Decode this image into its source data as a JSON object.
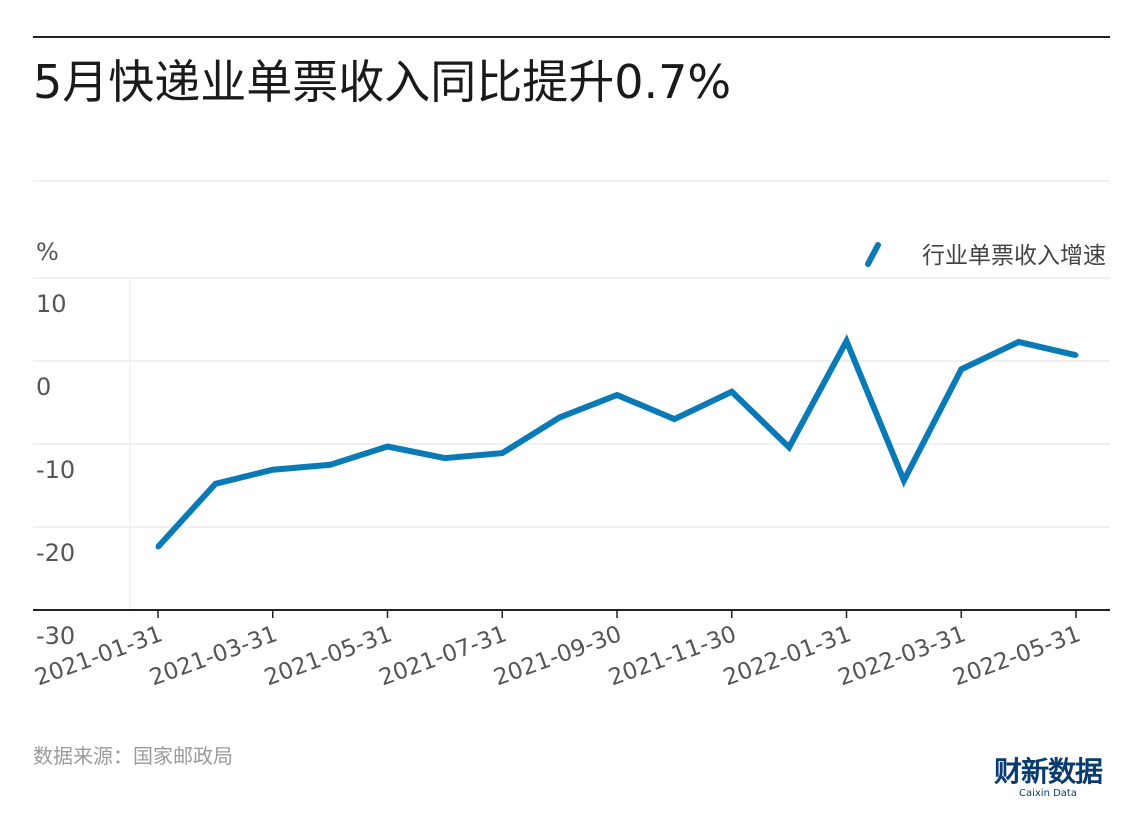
{
  "title": "5月快递业单票收入同比提升0.7%",
  "source": "数据来源：国家邮政局",
  "brand": {
    "name": "财新数据",
    "sub": "Caixin Data"
  },
  "colors": {
    "line": "#0a7ab7",
    "axis": "#222222",
    "grid": "#e2e2e2",
    "tick_text": "#555555"
  },
  "chart_data": {
    "type": "line",
    "title": "5月快递业单票收入同比提升0.7%",
    "ylabel": "%",
    "xlabel": "",
    "ylim": [
      -30,
      10
    ],
    "yticks": [
      10,
      0,
      -10,
      -20,
      -30
    ],
    "grid": true,
    "legend_position": "top-right",
    "x": [
      "2021-01-31",
      "2021-02-28",
      "2021-03-31",
      "2021-04-30",
      "2021-05-31",
      "2021-06-30",
      "2021-07-31",
      "2021-08-31",
      "2021-09-30",
      "2021-10-31",
      "2021-11-30",
      "2021-12-31",
      "2022-01-31",
      "2022-02-28",
      "2022-03-31",
      "2022-04-30",
      "2022-05-31"
    ],
    "xtick_labels": [
      "2021-01-31",
      "2021-03-31",
      "2021-05-31",
      "2021-07-31",
      "2021-09-30",
      "2021-11-30",
      "2022-01-31",
      "2022-03-31",
      "2022-05-31"
    ],
    "series": [
      {
        "name": "行业单票收入增速",
        "values": [
          -22.4,
          -14.8,
          -13.1,
          -12.5,
          -10.3,
          -11.7,
          -11.1,
          -6.8,
          -4.1,
          -7.0,
          -3.7,
          -10.4,
          2.4,
          -14.4,
          -1.0,
          2.3,
          0.7
        ]
      }
    ]
  }
}
